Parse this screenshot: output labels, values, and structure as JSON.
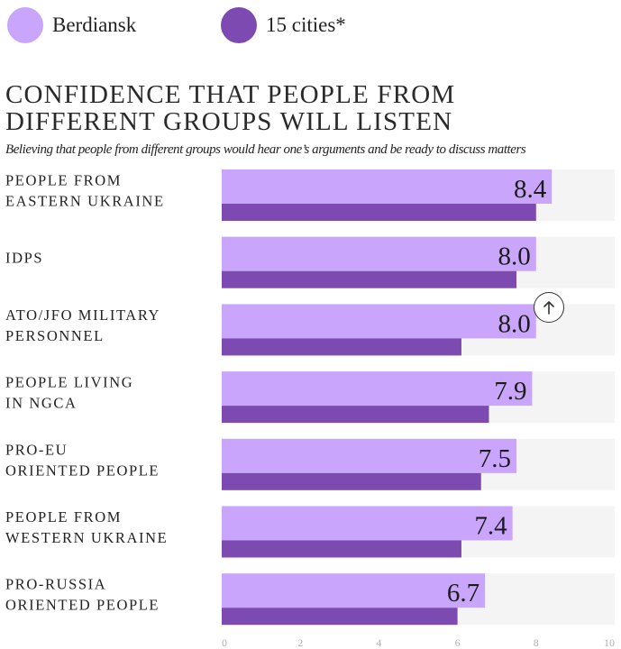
{
  "legend": {
    "berdiansk_label": "Berdiansk",
    "cities_label": "15 cities*"
  },
  "colors": {
    "berdiansk": "#c9a6fb",
    "cities": "#7c4ab0",
    "track": "#f4f4f4",
    "axis_text": "#b0b0b0"
  },
  "icons": {
    "scroll_top": "arrow-up-circle-icon"
  },
  "chart_data": {
    "type": "bar",
    "orientation": "horizontal",
    "title": "CONFIDENCE THAT PEOPLE FROM DIFFERENT GROUPS WILL LISTEN",
    "subtitle": "Believing that people from different groups would hear one’s arguments and be ready to discuss matters",
    "categories": [
      [
        "PEOPLE FROM",
        "EASTERN UKRAINE"
      ],
      [
        "IDPS"
      ],
      [
        "ATO/JFO MILITARY",
        "PERSONNEL"
      ],
      [
        "PEOPLE LIVING",
        "IN NGCA"
      ],
      [
        "PRO-EU",
        "ORIENTED PEOPLE"
      ],
      [
        "PEOPLE FROM",
        "WESTERN UKRAINE"
      ],
      [
        "PRO-RUSSIA",
        "ORIENTED PEOPLE"
      ]
    ],
    "series": [
      {
        "name": "Berdiansk",
        "values": [
          8.4,
          8.0,
          8.0,
          7.9,
          7.5,
          7.4,
          6.7
        ],
        "labels": [
          "8.4",
          "8.0",
          "8.0",
          "7.9",
          "7.5",
          "7.4",
          "6.7"
        ]
      },
      {
        "name": "15 cities*",
        "values": [
          8.0,
          7.5,
          6.1,
          6.8,
          6.6,
          6.1,
          6.0
        ]
      }
    ],
    "xlim": [
      0,
      10
    ],
    "x_ticks": [
      0,
      2,
      4,
      6,
      8,
      10
    ],
    "legend_position": "top-left",
    "grid": false
  }
}
